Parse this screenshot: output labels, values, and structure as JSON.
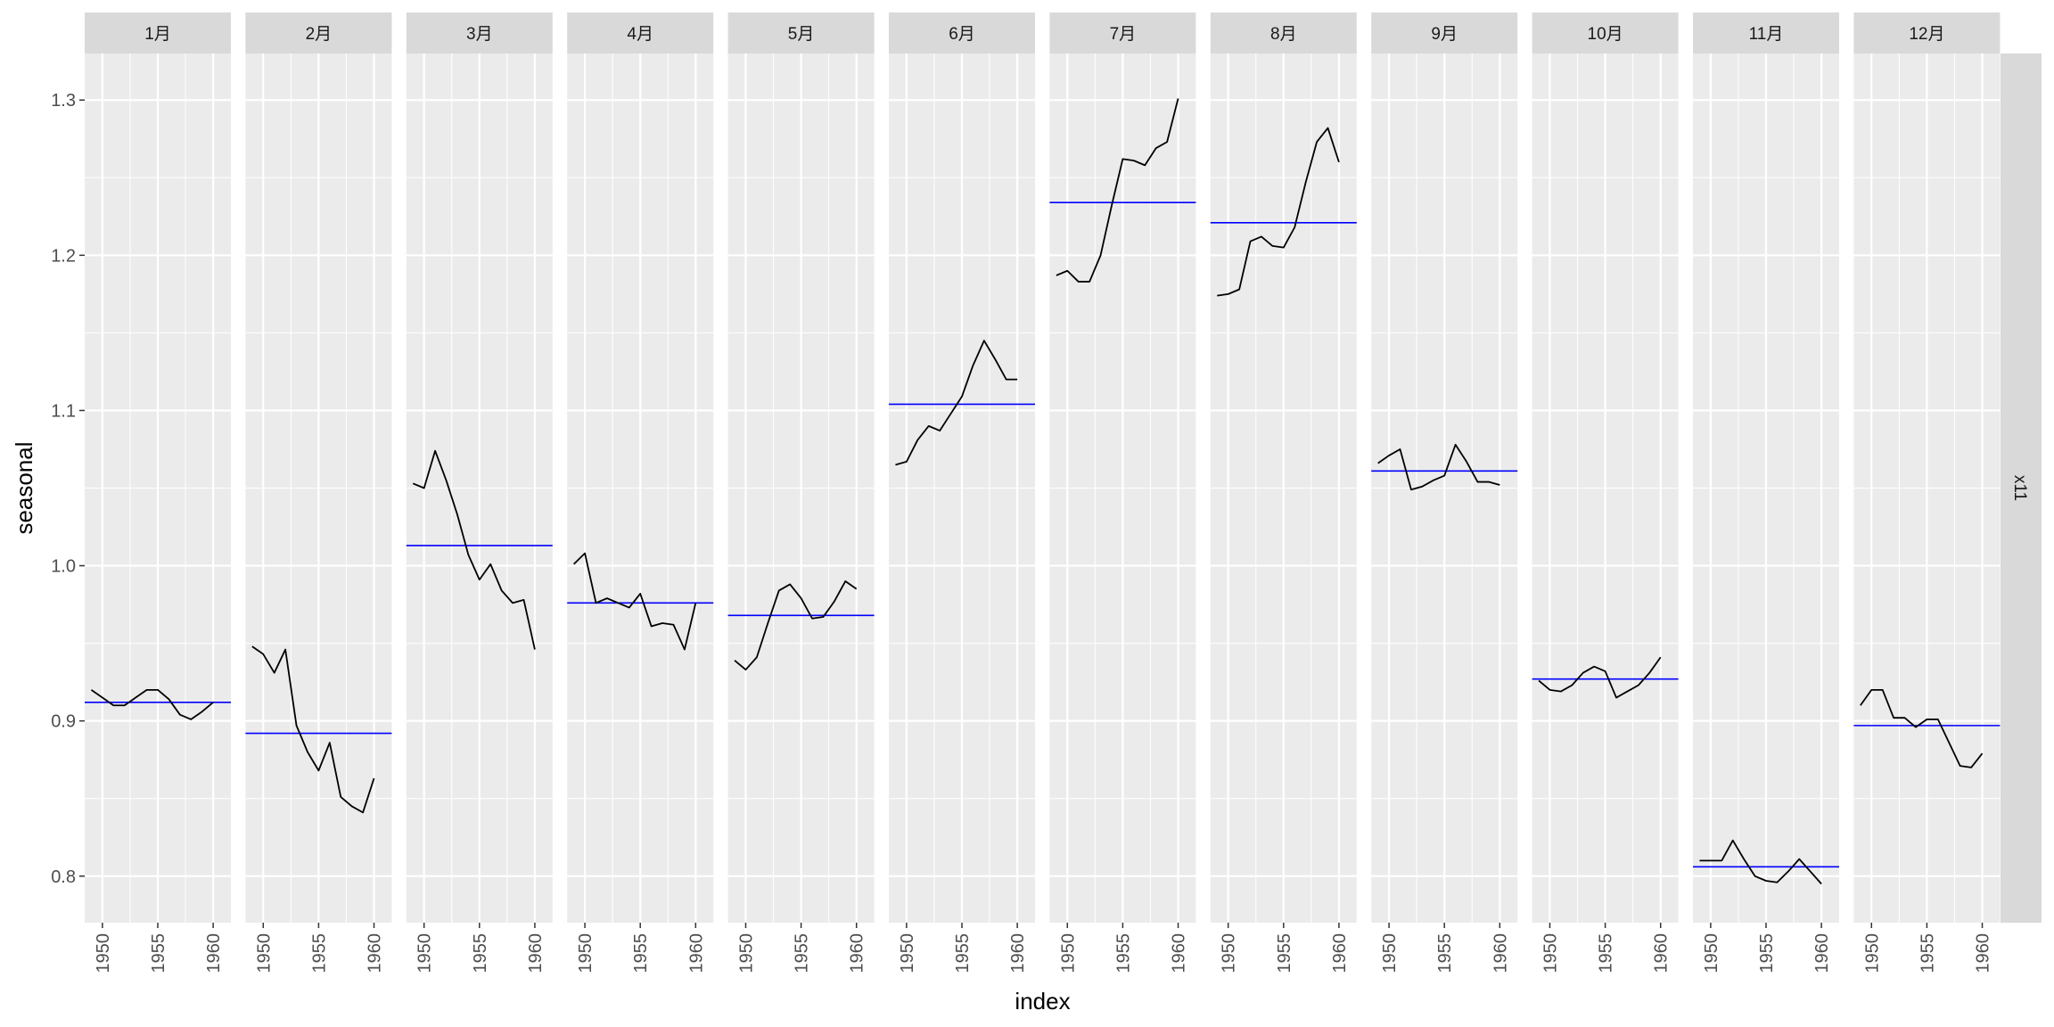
{
  "chart_data": {
    "type": "line",
    "xlabel": "index",
    "ylabel": "seasonal",
    "ylim": [
      0.77,
      1.33
    ],
    "xlim": [
      1948.4,
      1961.6
    ],
    "yticks": [
      0.8,
      0.9,
      1.0,
      1.1,
      1.2,
      1.3
    ],
    "ytick_labels": [
      "0.8",
      "0.9",
      "1.0",
      "1.1",
      "1.2",
      "1.3"
    ],
    "xticks": [
      1950,
      1955,
      1960
    ],
    "xtick_labels": [
      "1950",
      "1955",
      "1960"
    ],
    "facet_row_label": "x11",
    "grid": true,
    "years": [
      1949,
      1950,
      1951,
      1952,
      1953,
      1954,
      1955,
      1956,
      1957,
      1958,
      1959,
      1960
    ],
    "colors": {
      "panel_bg": "#ebebeb",
      "grid": "#ffffff",
      "strip_bg": "#d9d9d9",
      "series": "#000000",
      "mean_line": "#0000ff"
    },
    "panels": [
      {
        "month": "1月",
        "mean": 0.912,
        "values": [
          0.92,
          0.915,
          0.91,
          0.91,
          0.915,
          0.92,
          0.92,
          0.914,
          0.904,
          0.901,
          0.906,
          0.912
        ]
      },
      {
        "month": "2月",
        "mean": 0.892,
        "values": [
          0.948,
          0.943,
          0.931,
          0.946,
          0.897,
          0.88,
          0.868,
          0.886,
          0.851,
          0.845,
          0.841,
          0.863
        ]
      },
      {
        "month": "3月",
        "mean": 1.013,
        "values": [
          1.053,
          1.05,
          1.074,
          1.055,
          1.033,
          1.007,
          0.991,
          1.001,
          0.984,
          0.976,
          0.978,
          0.946
        ]
      },
      {
        "month": "4月",
        "mean": 0.976,
        "values": [
          1.001,
          1.008,
          0.976,
          0.979,
          0.976,
          0.973,
          0.982,
          0.961,
          0.963,
          0.962,
          0.946,
          0.976
        ]
      },
      {
        "month": "5月",
        "mean": 0.968,
        "values": [
          0.939,
          0.933,
          0.941,
          0.963,
          0.984,
          0.988,
          0.979,
          0.966,
          0.967,
          0.977,
          0.99,
          0.985
        ]
      },
      {
        "month": "6月",
        "mean": 1.104,
        "values": [
          1.065,
          1.067,
          1.081,
          1.09,
          1.087,
          1.098,
          1.109,
          1.129,
          1.145,
          1.133,
          1.12,
          1.12
        ]
      },
      {
        "month": "7月",
        "mean": 1.234,
        "values": [
          1.187,
          1.19,
          1.183,
          1.183,
          1.2,
          1.232,
          1.262,
          1.261,
          1.258,
          1.269,
          1.273,
          1.301
        ]
      },
      {
        "month": "8月",
        "mean": 1.221,
        "values": [
          1.174,
          1.175,
          1.178,
          1.209,
          1.212,
          1.206,
          1.205,
          1.218,
          1.247,
          1.273,
          1.282,
          1.26
        ]
      },
      {
        "month": "9月",
        "mean": 1.061,
        "values": [
          1.066,
          1.071,
          1.075,
          1.049,
          1.051,
          1.055,
          1.058,
          1.078,
          1.067,
          1.054,
          1.054,
          1.052
        ]
      },
      {
        "month": "10月",
        "mean": 0.927,
        "values": [
          0.926,
          0.92,
          0.919,
          0.923,
          0.931,
          0.935,
          0.932,
          0.915,
          0.919,
          0.923,
          0.931,
          0.941
        ]
      },
      {
        "month": "11月",
        "mean": 0.806,
        "values": [
          0.81,
          0.81,
          0.81,
          0.823,
          0.811,
          0.8,
          0.797,
          0.796,
          0.803,
          0.811,
          0.803,
          0.795
        ]
      },
      {
        "month": "12月",
        "mean": 0.897,
        "values": [
          0.91,
          0.92,
          0.92,
          0.902,
          0.902,
          0.896,
          0.901,
          0.901,
          0.886,
          0.871,
          0.87,
          0.879
        ]
      }
    ]
  }
}
